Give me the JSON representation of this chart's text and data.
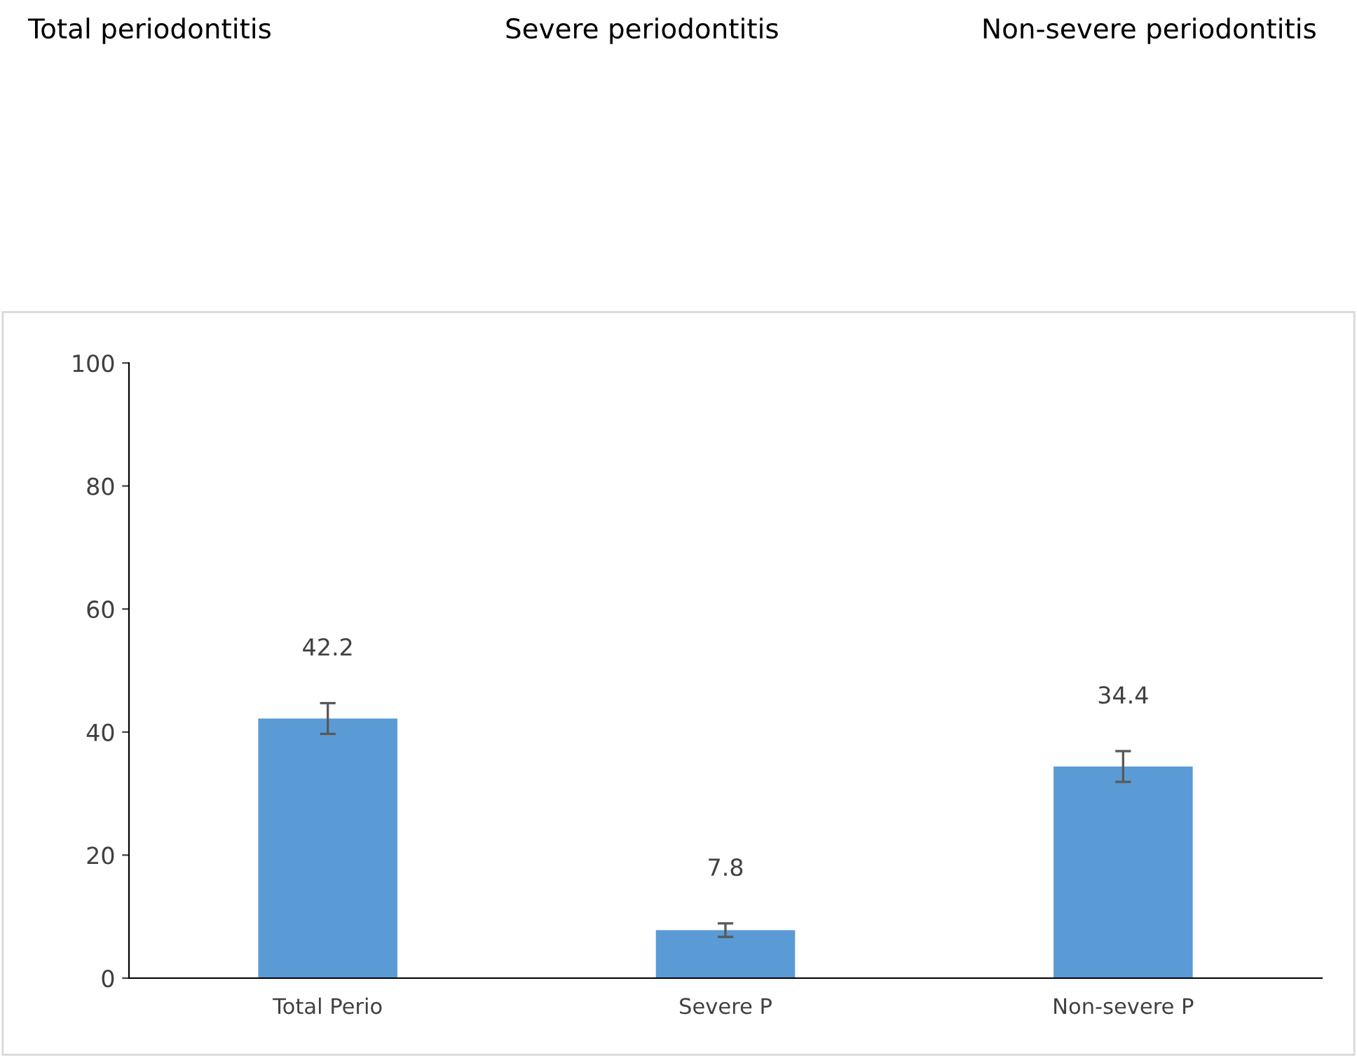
{
  "chart_data": {
    "type": "bar",
    "annotations": [
      "Total periodontitis",
      "Severe periodontitis",
      "Non-severe periodontitis"
    ],
    "categories": [
      "Total Perio",
      "Severe P",
      "Non-severe P"
    ],
    "values": [
      42.2,
      7.8,
      34.4
    ],
    "errors": [
      2.5,
      1.1,
      2.5
    ],
    "color": "#5b9bd5",
    "ylim": [
      0,
      100
    ],
    "yticks": [
      0,
      20,
      40,
      60,
      80,
      100
    ],
    "grid": false,
    "legend": false,
    "data_labels": true
  }
}
